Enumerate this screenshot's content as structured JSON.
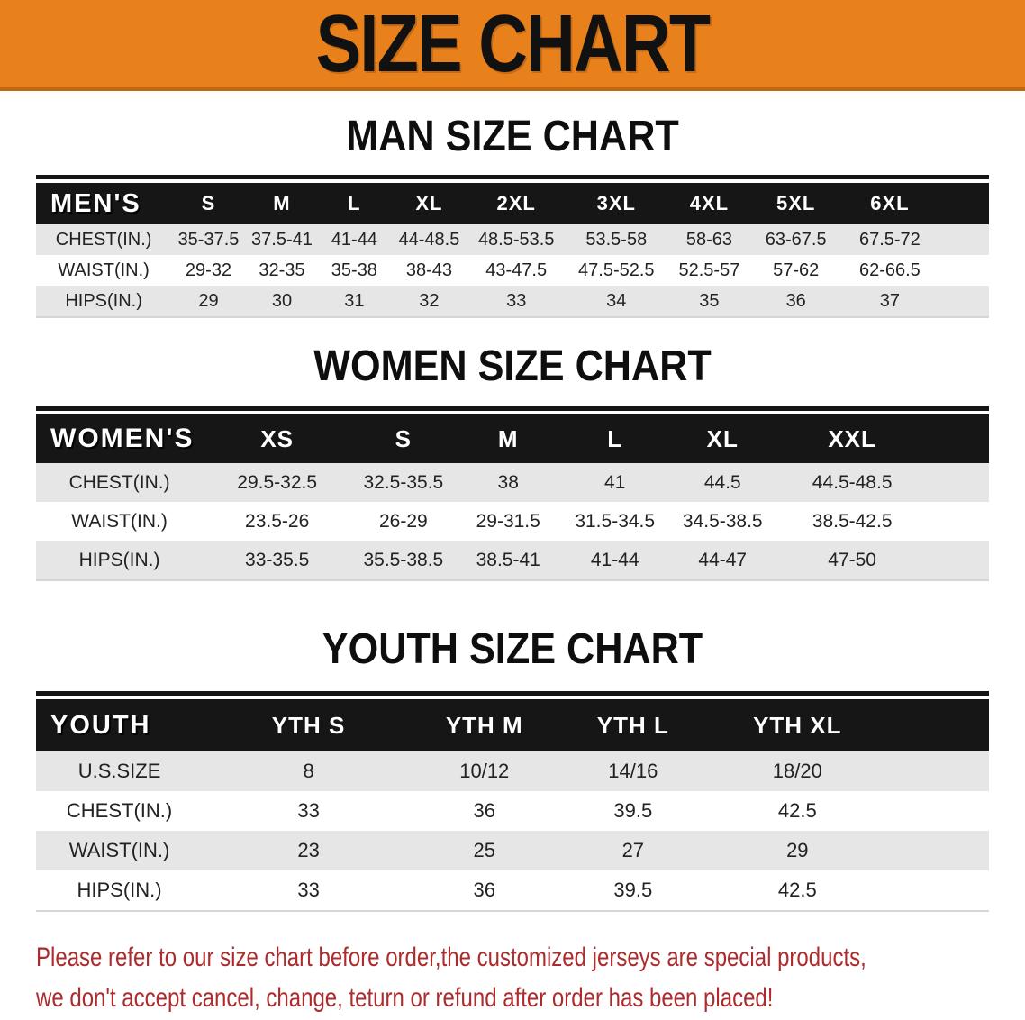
{
  "banner": {
    "title": "SIZE CHART"
  },
  "colors": {
    "banner_bg": "#E8811B",
    "banner_border": "#C4660D",
    "banner_text": "#111111",
    "table_header_bg": "#161616",
    "table_header_text": "#FFFFFF",
    "row_stripe": "#E6E6E6",
    "row_white": "#FFFFFF",
    "data_text": "#222222",
    "notice_text": "#AE2B2D"
  },
  "sections": [
    {
      "id": "men",
      "title": "MAN SIZE CHART",
      "header_label": "MEN'S",
      "columns": [
        "S",
        "M",
        "L",
        "XL",
        "2XL",
        "3XL",
        "4XL",
        "5XL",
        "6XL"
      ],
      "rows": [
        {
          "label": "CHEST(IN.)",
          "values": [
            "35-37.5",
            "37.5-41",
            "41-44",
            "44-48.5",
            "48.5-53.5",
            "53.5-58",
            "58-63",
            "63-67.5",
            "67.5-72"
          ]
        },
        {
          "label": "WAIST(IN.)",
          "values": [
            "29-32",
            "32-35",
            "35-38",
            "38-43",
            "43-47.5",
            "47.5-52.5",
            "52.5-57",
            "57-62",
            "62-66.5"
          ]
        },
        {
          "label": "HIPS(IN.)",
          "values": [
            "29",
            "30",
            "31",
            "32",
            "33",
            "34",
            "35",
            "36",
            "37"
          ]
        }
      ]
    },
    {
      "id": "women",
      "title": "WOMEN SIZE CHART",
      "header_label": "WOMEN'S",
      "columns": [
        "XS",
        "S",
        "M",
        "L",
        "XL",
        "XXL"
      ],
      "rows": [
        {
          "label": "CHEST(IN.)",
          "values": [
            "29.5-32.5",
            "32.5-35.5",
            "38",
            "41",
            "44.5",
            "44.5-48.5"
          ]
        },
        {
          "label": "WAIST(IN.)",
          "values": [
            "23.5-26",
            "26-29",
            "29-31.5",
            "31.5-34.5",
            "34.5-38.5",
            "38.5-42.5"
          ]
        },
        {
          "label": "HIPS(IN.)",
          "values": [
            "33-35.5",
            "35.5-38.5",
            "38.5-41",
            "41-44",
            "44-47",
            "47-50"
          ]
        }
      ]
    },
    {
      "id": "youth",
      "title": "YOUTH SIZE CHART",
      "header_label": "YOUTH",
      "columns": [
        "YTH S",
        "YTH M",
        "YTH L",
        "YTH XL"
      ],
      "rows": [
        {
          "label": "U.S.SIZE",
          "values": [
            "8",
            "10/12",
            "14/16",
            "18/20"
          ]
        },
        {
          "label": "CHEST(IN.)",
          "values": [
            "33",
            "36",
            "39.5",
            "42.5"
          ]
        },
        {
          "label": "WAIST(IN.)",
          "values": [
            "23",
            "25",
            "27",
            "29"
          ]
        },
        {
          "label": "HIPS(IN.)",
          "values": [
            "33",
            "36",
            "39.5",
            "42.5"
          ]
        }
      ]
    }
  ],
  "notice": {
    "line1": "Please refer to our size chart before order,the customized jerseys are special products,",
    "line2": "we don't accept cancel, change, teturn or refund after order has been placed!"
  }
}
